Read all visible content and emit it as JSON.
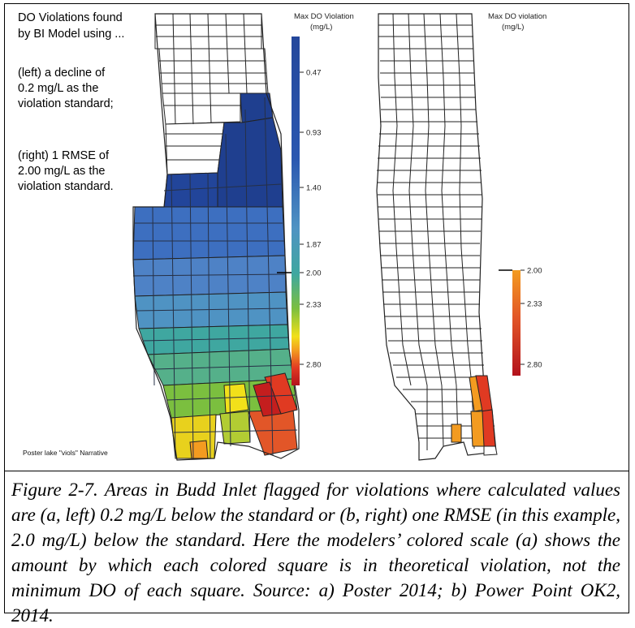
{
  "notes": {
    "line1": "DO Violations found",
    "line2": "by BI Model using ...",
    "left_a": "(left) a decline of",
    "left_b": "0.2 mg/L as the",
    "left_c": "violation standard;",
    "right_a": "(right) 1 RMSE of",
    "right_b": "2.00 mg/L as the",
    "right_c": "violation standard."
  },
  "left_legend": {
    "title_a": "Max DO Violation",
    "title_b": "(mg/L)",
    "ticks": [
      "0.47",
      "0.93",
      "1.40",
      "1.87",
      "2.00",
      "2.33",
      "2.80"
    ]
  },
  "right_legend": {
    "title_a": "Max DO violation",
    "title_b": "(mg/L)",
    "ticks": [
      "2.00",
      "2.33",
      "2.80"
    ]
  },
  "footnote": "Poster lake \"viols\" Narrative",
  "caption": "Figure 2-7.  Areas in Budd Inlet flagged for violations where calculated values are (a, left) 0.2 mg/L below the standard or (b, right) one RMSE (in this example, 2.0 mg/L) below the standard.  Here the modelers’ colored scale (a) shows the amount by which each colored square is in theoretical violation, not the minimum DO of each square. Source:  a) Poster 2014; b) Power Point OK2, 2014.",
  "colors": {
    "navy": "#1f3f8f",
    "blue": "#3d6fc0",
    "steel": "#5a8fca",
    "teal": "#3fa7a0",
    "green": "#7bbf3f",
    "yellow": "#f2e01a",
    "orange": "#f39b20",
    "red": "#e03a22",
    "darkred": "#b3121c"
  }
}
